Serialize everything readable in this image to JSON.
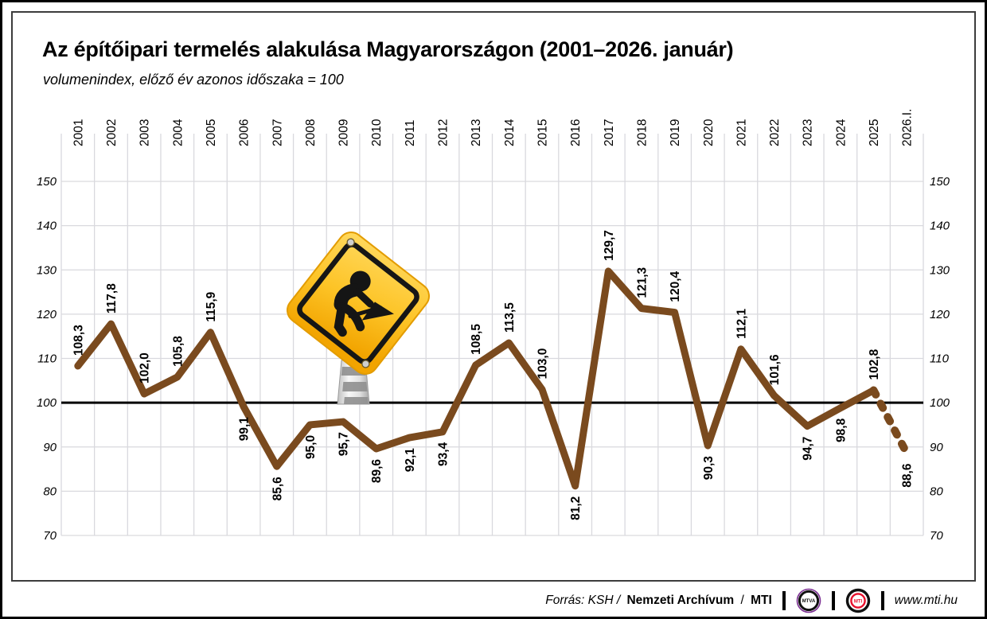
{
  "page": {
    "title": "Az építőipari termelés alakulása Magyarországon (2001–2026. január)",
    "subtitle": "volumenindex, előző év azonos időszaka = 100"
  },
  "chart_data": {
    "type": "line",
    "title": "Az építőipari termelés alakulása Magyarországon (2001–2026. január)",
    "subtitle": "volumenindex, előző év azonos időszaka = 100",
    "categories": [
      "2001",
      "2002",
      "2003",
      "2004",
      "2005",
      "2006",
      "2007",
      "2008",
      "2009",
      "2010",
      "2011",
      "2012",
      "2013",
      "2014",
      "2015",
      "2016",
      "2017",
      "2018",
      "2019",
      "2020",
      "2021",
      "2022",
      "2023",
      "2024",
      "2025",
      "2026.I."
    ],
    "values": [
      108.3,
      117.8,
      102.0,
      105.8,
      115.9,
      99.1,
      85.6,
      95.0,
      95.7,
      89.6,
      92.1,
      93.4,
      108.5,
      113.5,
      103.0,
      81.2,
      129.7,
      121.3,
      120.4,
      90.3,
      112.1,
      101.6,
      94.7,
      98.8,
      102.8,
      88.6
    ],
    "label_side": [
      "above",
      "above",
      "above",
      "above",
      "above",
      "below",
      "below",
      "below",
      "below",
      "below",
      "below",
      "below",
      "above",
      "above",
      "above",
      "below",
      "above",
      "above",
      "above",
      "below",
      "above",
      "above",
      "below",
      "below",
      "above",
      "below"
    ],
    "decimal_separator": ",",
    "dashed_last_segment": true,
    "baseline": 100,
    "ylim": [
      70,
      150
    ],
    "yticks": [
      70,
      80,
      90,
      100,
      110,
      120,
      130,
      140,
      150
    ],
    "grid": true,
    "line_color": "#7a4a1e",
    "grid_color": "#d9d9de",
    "baseline_color": "#000000",
    "sign_yellow_top": "#ffd75e",
    "sign_yellow_bottom": "#f2a400"
  },
  "footer": {
    "source_italic": "Forrás: KSH /",
    "archive": "Nemzeti Archívum",
    "slash": "/",
    "mti": "MTI",
    "mtva_logo_text": "MTVA",
    "mti_logo_text": "MTI",
    "website": "www.mti.hu"
  }
}
